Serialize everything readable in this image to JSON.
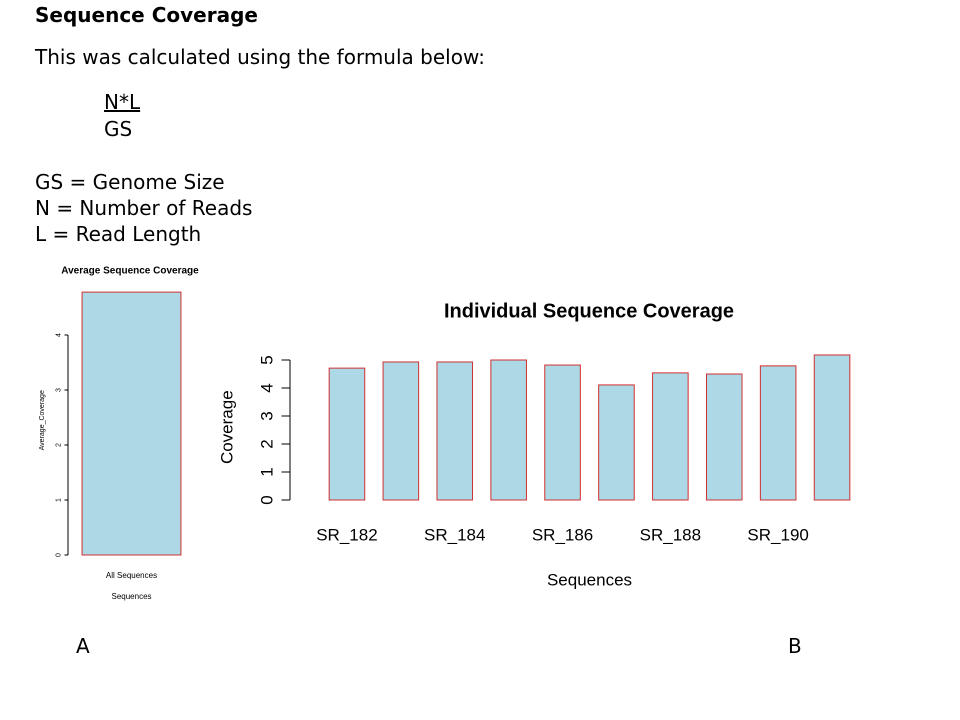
{
  "heading": "Sequence Coverage",
  "intro": "This was calculated using the formula below:",
  "formula": {
    "numerator": "N*L",
    "denominator": "GS"
  },
  "definitions": [
    "GS = Genome Size",
    "N = Number of Reads",
    "L = Read Length"
  ],
  "panel_labels": [
    "A",
    "B"
  ],
  "chart_data": [
    {
      "type": "bar",
      "title": "Average Sequence Coverage",
      "xlabel": "Sequences",
      "ylabel": "Average_Coverage",
      "categories": [
        "All Sequences"
      ],
      "values": [
        4.78
      ],
      "color": "#add8e6",
      "edgecolor": "#d03030",
      "ylim": [
        0,
        4.9
      ],
      "yticks": [
        0,
        1,
        2,
        3,
        4
      ]
    },
    {
      "type": "bar",
      "title": "Individual Sequence Coverage",
      "xlabel": "Sequences",
      "ylabel": "Coverage",
      "categories": [
        "SR_182",
        null,
        "SR_184",
        null,
        "SR_186",
        null,
        "SR_188",
        null,
        "SR_190",
        null
      ],
      "values": [
        4.71,
        4.93,
        4.93,
        5.0,
        4.82,
        4.11,
        4.54,
        4.5,
        4.79,
        5.18
      ],
      "color": "#add8e6",
      "edgecolor": "#d03030",
      "ylim": [
        0,
        5.2
      ],
      "yticks": [
        0,
        1,
        2,
        3,
        4,
        5
      ]
    }
  ]
}
